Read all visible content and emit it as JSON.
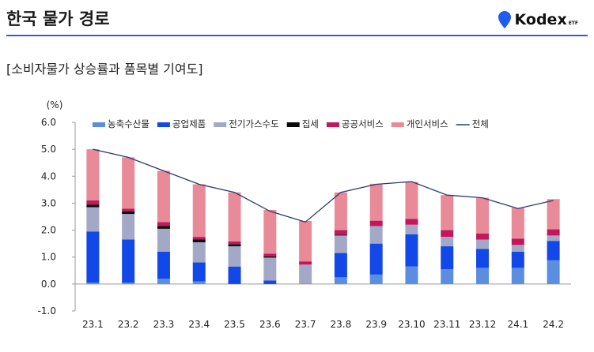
{
  "header": {
    "title": "한국 물가 경로",
    "brand_name": "Kodex",
    "brand_sub": "ETF"
  },
  "subtitle": "[소비자물가 상승률과 품목별 기여도]",
  "chart_data": {
    "type": "bar",
    "stacked": true,
    "title": "",
    "unit_label": "(%)",
    "xlabel": "",
    "ylabel": "",
    "ylim": [
      -1.0,
      6.0
    ],
    "yticks": [
      "6.0",
      "5.0",
      "4.0",
      "3.0",
      "2.0",
      "1.0",
      "0.0",
      "-1.0"
    ],
    "ytick_values": [
      6,
      5,
      4,
      3,
      2,
      1,
      0,
      -1
    ],
    "categories": [
      "23.1",
      "23.2",
      "23.3",
      "23.4",
      "23.5",
      "23.6",
      "23.7",
      "23.8",
      "23.9",
      "23.10",
      "23.11",
      "23.12",
      "24.1",
      "24.2"
    ],
    "series": [
      {
        "name": "농축수산물",
        "color": "#5b8ee0",
        "values": [
          0.05,
          0.05,
          0.2,
          0.1,
          0.0,
          0.0,
          0.02,
          0.25,
          0.35,
          0.65,
          0.55,
          0.6,
          0.6,
          0.88
        ]
      },
      {
        "name": "공업제품",
        "color": "#1247e8",
        "values": [
          1.9,
          1.6,
          1.0,
          0.7,
          0.65,
          0.13,
          0.0,
          0.9,
          1.15,
          1.2,
          0.85,
          0.7,
          0.6,
          0.72
        ]
      },
      {
        "name": "전기가스수도",
        "color": "#a2a8c6",
        "values": [
          0.9,
          0.95,
          0.85,
          0.75,
          0.75,
          0.85,
          0.7,
          0.65,
          0.65,
          0.35,
          0.35,
          0.35,
          0.25,
          0.2
        ]
      },
      {
        "name": "집세",
        "color": "#0a0a0a",
        "values": [
          0.1,
          0.1,
          0.1,
          0.1,
          0.08,
          0.05,
          0.0,
          0.03,
          0.0,
          0.0,
          0.0,
          0.0,
          0.0,
          0.0
        ]
      },
      {
        "name": "공공서비스",
        "color": "#c2185b",
        "values": [
          0.15,
          0.1,
          0.15,
          0.1,
          0.1,
          0.1,
          0.12,
          0.17,
          0.2,
          0.22,
          0.25,
          0.22,
          0.23,
          0.23
        ]
      },
      {
        "name": "개인서비스",
        "color": "#e88a97",
        "values": [
          1.9,
          1.9,
          1.9,
          1.95,
          1.82,
          1.62,
          1.5,
          1.4,
          1.37,
          1.37,
          1.3,
          1.33,
          1.15,
          1.12
        ]
      }
    ],
    "line_series": {
      "name": "전체",
      "color": "#2b3a6b",
      "values": [
        5.0,
        4.7,
        4.2,
        3.7,
        3.4,
        2.7,
        2.3,
        3.4,
        3.7,
        3.8,
        3.3,
        3.2,
        2.8,
        3.1
      ]
    }
  }
}
